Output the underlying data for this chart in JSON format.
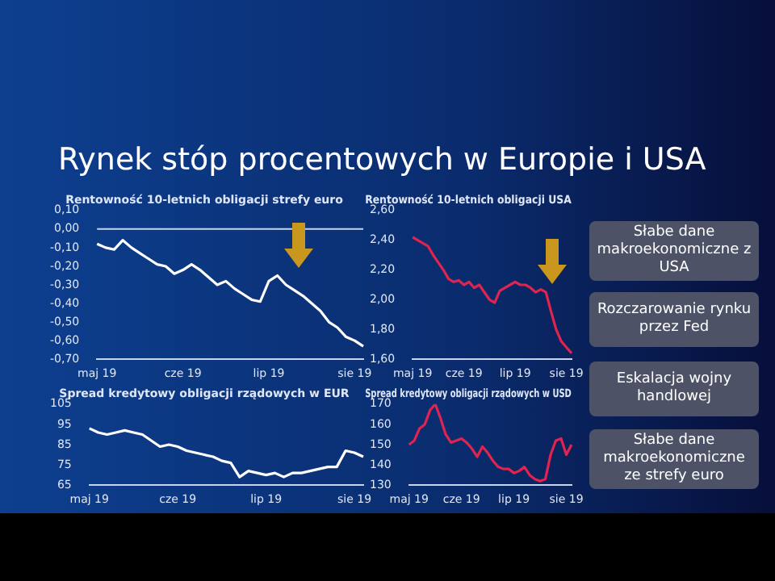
{
  "chart_data": [
    {
      "type": "other",
      "title": "Rynek stóp procentowych w Europie i USA",
      "annotations": [
        "Słabe dane makroekonomiczne z USA",
        "Rozczarowanie rynku przez Fed",
        "Eskalacja wojny handlowej",
        "Słabe dane makroekonomiczne ze strefy euro"
      ]
    },
    {
      "type": "line",
      "title": "Rentowność 10-letnich obligacji strefy euro",
      "marker": "none",
      "grid": false,
      "categories": [
        "maj 19",
        null,
        null,
        null,
        null,
        null,
        null,
        null,
        null,
        null,
        "cze 19",
        null,
        null,
        null,
        null,
        null,
        null,
        null,
        null,
        null,
        "lip 19",
        null,
        null,
        null,
        null,
        null,
        null,
        null,
        null,
        null,
        "sie 19",
        null
      ],
      "series": [
        {
          "color": "#ffffff",
          "values": [
            -0.08,
            -0.1,
            -0.11,
            -0.06,
            -0.1,
            -0.13,
            -0.16,
            -0.19,
            -0.2,
            -0.24,
            -0.22,
            -0.19,
            -0.22,
            -0.26,
            -0.3,
            -0.28,
            -0.32,
            -0.35,
            -0.38,
            -0.39,
            -0.28,
            -0.25,
            -0.3,
            -0.33,
            -0.36,
            -0.4,
            -0.44,
            -0.5,
            -0.53,
            -0.58,
            -0.6,
            -0.63
          ]
        }
      ],
      "ylim": [
        -0.7,
        0.1
      ],
      "yticks": [
        {
          "value": -0.7,
          "label": "-0,70"
        },
        {
          "value": -0.6,
          "label": "-0,60"
        },
        {
          "value": -0.5,
          "label": "-0,50"
        },
        {
          "value": -0.4,
          "label": "-0,40"
        },
        {
          "value": -0.3,
          "label": "-0,30"
        },
        {
          "value": -0.2,
          "label": "-0,20"
        },
        {
          "value": -0.1,
          "label": "-0,10"
        },
        {
          "value": 0,
          "label": "0,00"
        },
        {
          "value": 0.1,
          "label": "0,10"
        }
      ],
      "ref_lines": [
        {
          "axis": "y",
          "value": 0,
          "color": "#c8d4ee"
        }
      ]
    },
    {
      "type": "line",
      "title": "Rentowność 10-letnich obligacji USA",
      "marker": "none",
      "grid": false,
      "categories": [
        "maj 19",
        null,
        null,
        null,
        null,
        null,
        null,
        null,
        null,
        null,
        "cze 19",
        null,
        null,
        null,
        null,
        null,
        null,
        null,
        null,
        null,
        "lip 19",
        null,
        null,
        null,
        null,
        null,
        null,
        null,
        null,
        null,
        "sie 19",
        null
      ],
      "series": [
        {
          "color": "#e0234f",
          "values": [
            2.42,
            2.4,
            2.38,
            2.36,
            2.3,
            2.25,
            2.2,
            2.14,
            2.12,
            2.13,
            2.1,
            2.12,
            2.08,
            2.1,
            2.05,
            2.0,
            1.98,
            2.06,
            2.08,
            2.1,
            2.12,
            2.1,
            2.1,
            2.08,
            2.05,
            2.07,
            2.05,
            1.92,
            1.8,
            1.72,
            1.68,
            1.64
          ]
        }
      ],
      "ylim": [
        1.6,
        2.6
      ],
      "yticks": [
        {
          "value": 1.6,
          "label": "1,60"
        },
        {
          "value": 1.8,
          "label": "1,80"
        },
        {
          "value": 2.0,
          "label": "2,00"
        },
        {
          "value": 2.2,
          "label": "2,20"
        },
        {
          "value": 2.4,
          "label": "2,40"
        },
        {
          "value": 2.6,
          "label": "2,60"
        }
      ]
    },
    {
      "type": "line",
      "title": "Spread kredytowy obligacji rządowych w EUR",
      "marker": "none",
      "grid": false,
      "categories": [
        "maj 19",
        null,
        null,
        null,
        null,
        null,
        null,
        null,
        null,
        null,
        "cze 19",
        null,
        null,
        null,
        null,
        null,
        null,
        null,
        null,
        null,
        "lip 19",
        null,
        null,
        null,
        null,
        null,
        null,
        null,
        null,
        null,
        "sie 19",
        null
      ],
      "series": [
        {
          "color": "#ffffff",
          "values": [
            93,
            91,
            90,
            91,
            92,
            91,
            90,
            87,
            84,
            85,
            84,
            82,
            81,
            80,
            79,
            77,
            76,
            69,
            72,
            71,
            70,
            71,
            69,
            71,
            71,
            72,
            73,
            74,
            74,
            82,
            81,
            79
          ]
        }
      ],
      "ylim": [
        65,
        105
      ],
      "yticks": [
        65,
        75,
        85,
        95,
        105
      ]
    },
    {
      "type": "line",
      "title": "Spread kredytowy obligacji rządowych w USD",
      "marker": "none",
      "grid": false,
      "categories": [
        "maj 19",
        null,
        null,
        null,
        null,
        null,
        null,
        null,
        null,
        null,
        "cze 19",
        null,
        null,
        null,
        null,
        null,
        null,
        null,
        null,
        null,
        "lip 19",
        null,
        null,
        null,
        null,
        null,
        null,
        null,
        null,
        null,
        "sie 19",
        null
      ],
      "series": [
        {
          "color": "#e0234f",
          "values": [
            150,
            152,
            158,
            160,
            167,
            170,
            163,
            155,
            151,
            152,
            153,
            151,
            148,
            144,
            149,
            146,
            142,
            139,
            138,
            138,
            136,
            137,
            139,
            135,
            133,
            132,
            133,
            145,
            152,
            153,
            145,
            150
          ]
        }
      ],
      "ylim": [
        130,
        170
      ],
      "yticks": [
        130,
        140,
        150,
        160,
        170
      ]
    }
  ]
}
